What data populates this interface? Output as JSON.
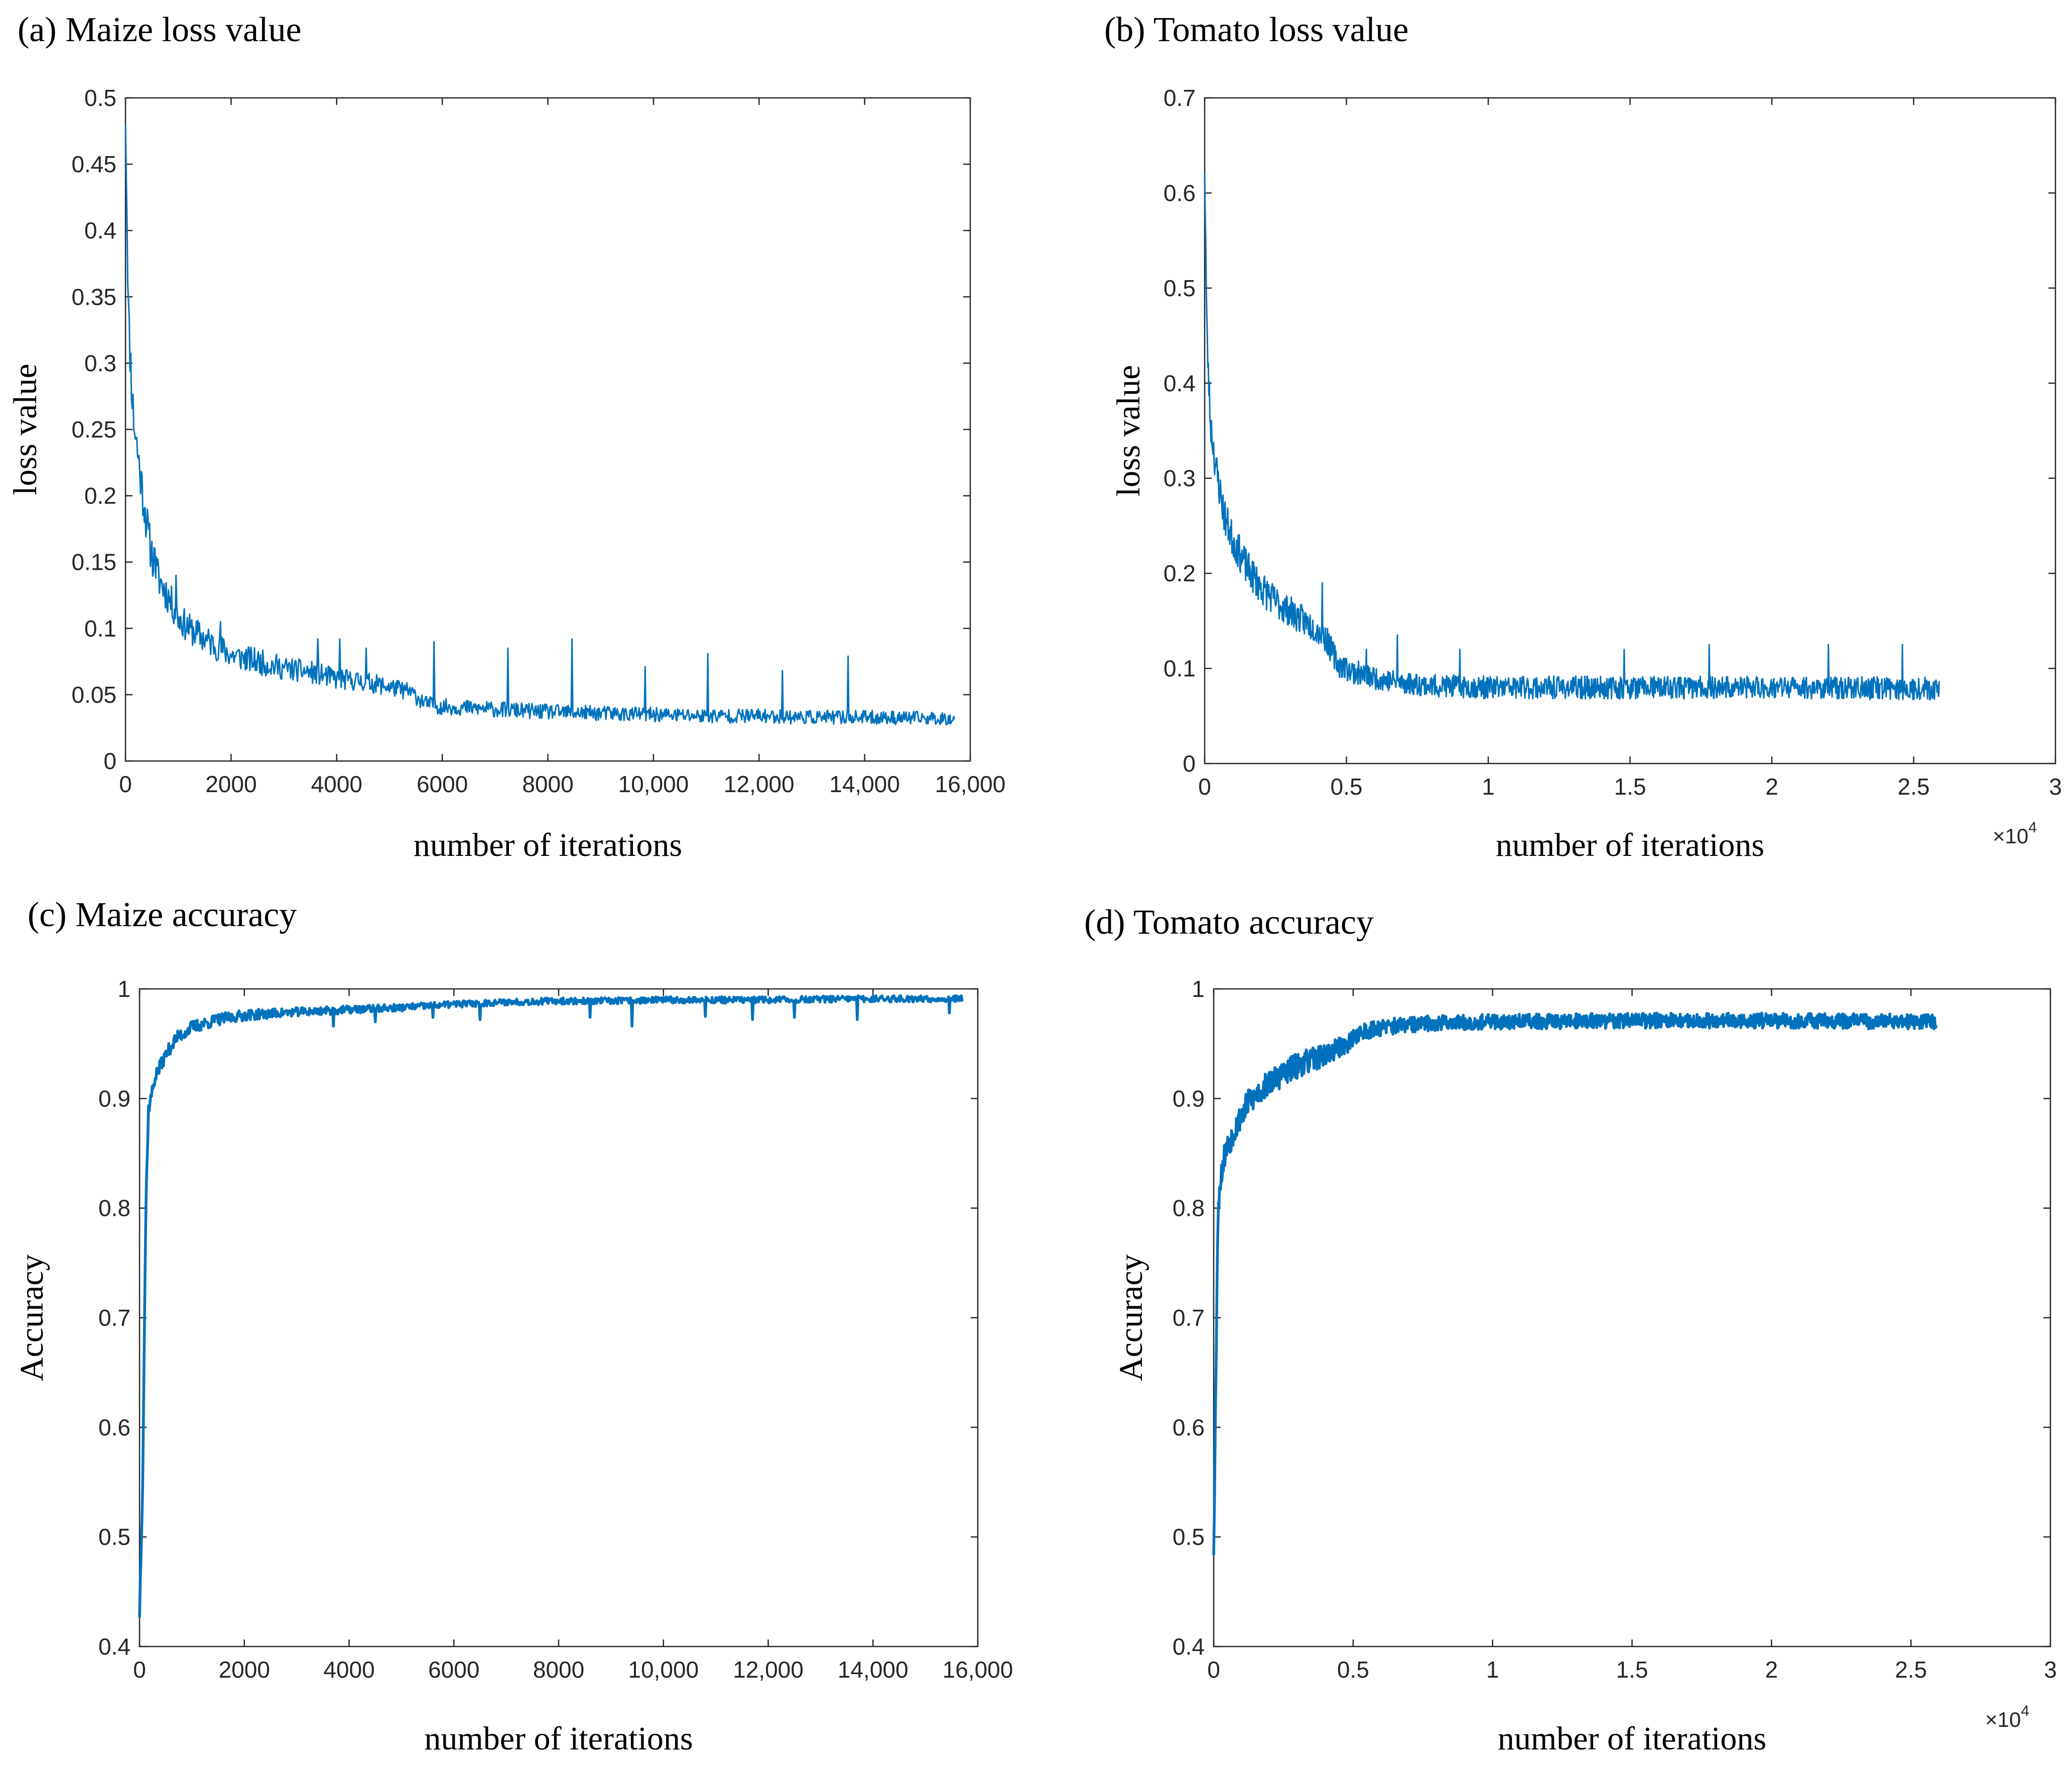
{
  "colors": {
    "series": "#0072BD",
    "axis": "#262626",
    "background": "#ffffff"
  },
  "chart_data": [
    {
      "id": "a",
      "type": "line",
      "title": "(a) Maize loss value",
      "xlabel": "number of iterations",
      "ylabel": "loss value",
      "xlim": [
        0,
        16000
      ],
      "ylim": [
        0,
        0.5
      ],
      "xticks": [
        0,
        2000,
        4000,
        6000,
        8000,
        10000,
        12000,
        14000,
        16000
      ],
      "xtick_labels": [
        "0",
        "2000",
        "4000",
        "6000",
        "8000",
        "10,000",
        "12,000",
        "14,000",
        "16,000"
      ],
      "yticks": [
        0,
        0.05,
        0.1,
        0.15,
        0.2,
        0.25,
        0.3,
        0.35,
        0.4,
        0.45,
        0.5
      ],
      "ytick_labels": [
        "0",
        "0.05",
        "0.1",
        "0.15",
        "0.2",
        "0.25",
        "0.3",
        "0.35",
        "0.4",
        "0.45",
        "0.5"
      ],
      "x_exponent": null,
      "series": [
        {
          "name": "loss",
          "x_end": 15700,
          "points": [
            [
              0,
              0.49
            ],
            [
              60,
              0.33
            ],
            [
              150,
              0.26
            ],
            [
              300,
              0.21
            ],
            [
              450,
              0.165
            ],
            [
              600,
              0.14
            ],
            [
              800,
              0.125
            ],
            [
              1000,
              0.108
            ],
            [
              1200,
              0.1
            ],
            [
              1500,
              0.092
            ],
            [
              2000,
              0.08
            ],
            [
              2500,
              0.075
            ],
            [
              3000,
              0.07
            ],
            [
              3500,
              0.067
            ],
            [
              4000,
              0.062
            ],
            [
              4500,
              0.06
            ],
            [
              5000,
              0.056
            ],
            [
              5400,
              0.052
            ],
            [
              5700,
              0.043
            ],
            [
              6000,
              0.041
            ],
            [
              7000,
              0.039
            ],
            [
              8000,
              0.037
            ],
            [
              9000,
              0.036
            ],
            [
              10000,
              0.035
            ],
            [
              11000,
              0.034
            ],
            [
              12000,
              0.034
            ],
            [
              13000,
              0.033
            ],
            [
              14000,
              0.033
            ],
            [
              15700,
              0.032
            ]
          ],
          "noise": [
            [
              0,
              0.02
            ],
            [
              1000,
              0.012
            ],
            [
              3000,
              0.009
            ],
            [
              6000,
              0.006
            ],
            [
              15700,
              0.005
            ]
          ],
          "spikes": [
            [
              560,
              0.16
            ],
            [
              960,
              0.14
            ],
            [
              1800,
              0.105
            ],
            [
              3640,
              0.092
            ],
            [
              4050,
              0.092
            ],
            [
              4560,
              0.085
            ],
            [
              5840,
              0.09
            ],
            [
              7240,
              0.085
            ],
            [
              8450,
              0.092
            ],
            [
              9840,
              0.071
            ],
            [
              11030,
              0.081
            ],
            [
              12440,
              0.068
            ],
            [
              13680,
              0.079
            ]
          ],
          "seed": 11,
          "steps": 1100
        }
      ]
    },
    {
      "id": "b",
      "type": "line",
      "title": "(b) Tomato loss value",
      "xlabel": "number of iterations",
      "ylabel": "loss value",
      "xlim": [
        0,
        30000
      ],
      "ylim": [
        0,
        0.7
      ],
      "xticks": [
        0,
        5000,
        10000,
        15000,
        20000,
        25000,
        30000
      ],
      "xtick_labels": [
        "0",
        "0.5",
        "1",
        "1.5",
        "2",
        "2.5",
        "3"
      ],
      "yticks": [
        0,
        0.1,
        0.2,
        0.3,
        0.4,
        0.5,
        0.6,
        0.7
      ],
      "ytick_labels": [
        "0",
        "0.1",
        "0.2",
        "0.3",
        "0.4",
        "0.5",
        "0.6",
        "0.7"
      ],
      "x_exponent": {
        "base": "×10",
        "power": "4"
      },
      "series": [
        {
          "name": "loss",
          "x_end": 25900,
          "points": [
            [
              0,
              0.63
            ],
            [
              80,
              0.45
            ],
            [
              200,
              0.36
            ],
            [
              400,
              0.31
            ],
            [
              700,
              0.26
            ],
            [
              1000,
              0.235
            ],
            [
              1500,
              0.205
            ],
            [
              2000,
              0.185
            ],
            [
              2500,
              0.17
            ],
            [
              3000,
              0.16
            ],
            [
              3500,
              0.15
            ],
            [
              4000,
              0.14
            ],
            [
              4300,
              0.13
            ],
            [
              4700,
              0.105
            ],
            [
              5200,
              0.097
            ],
            [
              6000,
              0.09
            ],
            [
              7000,
              0.085
            ],
            [
              8000,
              0.082
            ],
            [
              10000,
              0.08
            ],
            [
              15000,
              0.08
            ],
            [
              20000,
              0.08
            ],
            [
              25900,
              0.079
            ]
          ],
          "noise": [
            [
              0,
              0.02
            ],
            [
              2000,
              0.018
            ],
            [
              4500,
              0.014
            ],
            [
              6000,
              0.012
            ],
            [
              25900,
              0.012
            ]
          ],
          "spikes": [
            [
              4150,
              0.19
            ],
            [
              5700,
              0.12
            ],
            [
              6800,
              0.135
            ],
            [
              9000,
              0.12
            ],
            [
              14800,
              0.12
            ],
            [
              17800,
              0.125
            ],
            [
              22000,
              0.125
            ],
            [
              24600,
              0.125
            ]
          ],
          "seed": 23,
          "steps": 1400
        }
      ]
    },
    {
      "id": "c",
      "type": "line",
      "title": "(c) Maize accuracy",
      "xlabel": "number of iterations",
      "ylabel": "Accuracy",
      "xlim": [
        0,
        16000
      ],
      "ylim": [
        0.4,
        1.0
      ],
      "xticks": [
        0,
        2000,
        4000,
        6000,
        8000,
        10000,
        12000,
        14000,
        16000
      ],
      "xtick_labels": [
        "0",
        "2000",
        "4000",
        "6000",
        "8000",
        "10,000",
        "12,000",
        "14,000",
        "16,000"
      ],
      "yticks": [
        0.4,
        0.5,
        0.6,
        0.7,
        0.8,
        0.9,
        1.0
      ],
      "ytick_labels": [
        "0.4",
        "0.5",
        "0.6",
        "0.7",
        "0.8",
        "0.9",
        "1"
      ],
      "x_exponent": null,
      "series": [
        {
          "name": "accuracy",
          "x_end": 15700,
          "points": [
            [
              0,
              0.43
            ],
            [
              60,
              0.55
            ],
            [
              120,
              0.8
            ],
            [
              170,
              0.89
            ],
            [
              300,
              0.92
            ],
            [
              500,
              0.94
            ],
            [
              700,
              0.955
            ],
            [
              1000,
              0.965
            ],
            [
              1500,
              0.972
            ],
            [
              2000,
              0.976
            ],
            [
              3000,
              0.979
            ],
            [
              4000,
              0.981
            ],
            [
              5000,
              0.983
            ],
            [
              6000,
              0.986
            ],
            [
              7000,
              0.988
            ],
            [
              8000,
              0.989
            ],
            [
              9000,
              0.989
            ],
            [
              10000,
              0.99
            ],
            [
              12000,
              0.99
            ],
            [
              14000,
              0.991
            ],
            [
              15700,
              0.991
            ]
          ],
          "noise": [
            [
              0,
              0.006
            ],
            [
              1000,
              0.006
            ],
            [
              3000,
              0.004
            ],
            [
              6000,
              0.003
            ],
            [
              15700,
              0.003
            ]
          ],
          "spikes": [
            [
              3700,
              0.966
            ],
            [
              4500,
              0.97
            ],
            [
              5600,
              0.974
            ],
            [
              6500,
              0.972
            ],
            [
              8600,
              0.974
            ],
            [
              9400,
              0.966
            ],
            [
              10800,
              0.975
            ],
            [
              11700,
              0.972
            ],
            [
              12500,
              0.974
            ],
            [
              13700,
              0.972
            ],
            [
              15450,
              0.978
            ]
          ],
          "seed": 37,
          "steps": 1100
        }
      ]
    },
    {
      "id": "d",
      "type": "line",
      "title": "(d) Tomato accuracy",
      "xlabel": "number of iterations",
      "ylabel": "Accuracy",
      "xlim": [
        0,
        30000
      ],
      "ylim": [
        0.4,
        1.0
      ],
      "xticks": [
        0,
        5000,
        10000,
        15000,
        20000,
        25000,
        30000
      ],
      "xtick_labels": [
        "0",
        "0.5",
        "1",
        "1.5",
        "2",
        "2.5",
        "3"
      ],
      "yticks": [
        0.4,
        0.5,
        0.6,
        0.7,
        0.8,
        0.9,
        1.0
      ],
      "ytick_labels": [
        "0.4",
        "0.5",
        "0.6",
        "0.7",
        "0.8",
        "0.9",
        "1"
      ],
      "x_exponent": {
        "base": "×10",
        "power": "4"
      },
      "series": [
        {
          "name": "accuracy",
          "x_end": 25900,
          "points": [
            [
              0,
              0.49
            ],
            [
              60,
              0.6
            ],
            [
              130,
              0.76
            ],
            [
              200,
              0.82
            ],
            [
              400,
              0.85
            ],
            [
              800,
              0.875
            ],
            [
              1200,
              0.895
            ],
            [
              2000,
              0.915
            ],
            [
              3000,
              0.93
            ],
            [
              4000,
              0.94
            ],
            [
              4800,
              0.95
            ],
            [
              5200,
              0.96
            ],
            [
              6000,
              0.965
            ],
            [
              8000,
              0.969
            ],
            [
              10000,
              0.97
            ],
            [
              15000,
              0.971
            ],
            [
              20000,
              0.971
            ],
            [
              25900,
              0.97
            ]
          ],
          "noise": [
            [
              0,
              0.012
            ],
            [
              3000,
              0.012
            ],
            [
              5000,
              0.008
            ],
            [
              8000,
              0.007
            ],
            [
              25900,
              0.007
            ]
          ],
          "spikes": [],
          "seed": 53,
          "steps": 1500
        }
      ]
    }
  ]
}
